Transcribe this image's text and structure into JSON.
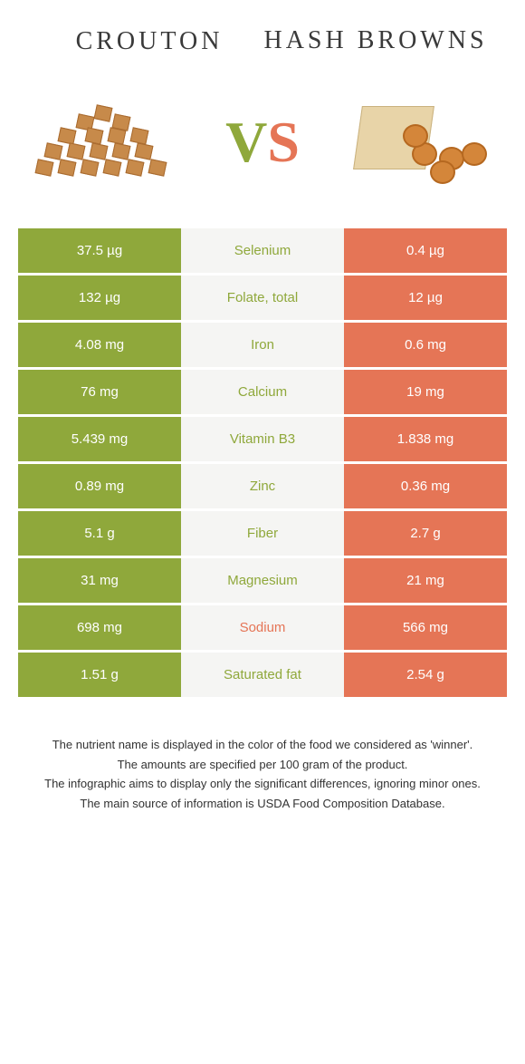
{
  "foods": {
    "left": "Crouton",
    "right": "Hash browns"
  },
  "vs": {
    "v": "V",
    "s": "S"
  },
  "colors": {
    "green": "#8fa83b",
    "orange": "#e57556",
    "mid_bg": "#f5f5f3"
  },
  "rows": [
    {
      "left": "37.5 µg",
      "label": "Selenium",
      "right": "0.4 µg",
      "winner": "green"
    },
    {
      "left": "132 µg",
      "label": "Folate, total",
      "right": "12 µg",
      "winner": "green"
    },
    {
      "left": "4.08 mg",
      "label": "Iron",
      "right": "0.6 mg",
      "winner": "green"
    },
    {
      "left": "76 mg",
      "label": "Calcium",
      "right": "19 mg",
      "winner": "green"
    },
    {
      "left": "5.439 mg",
      "label": "Vitamin B3",
      "right": "1.838 mg",
      "winner": "green"
    },
    {
      "left": "0.89 mg",
      "label": "Zinc",
      "right": "0.36 mg",
      "winner": "green"
    },
    {
      "left": "5.1 g",
      "label": "Fiber",
      "right": "2.7 g",
      "winner": "green"
    },
    {
      "left": "31 mg",
      "label": "Magnesium",
      "right": "21 mg",
      "winner": "green"
    },
    {
      "left": "698 mg",
      "label": "Sodium",
      "right": "566 mg",
      "winner": "orange"
    },
    {
      "left": "1.51 g",
      "label": "Saturated fat",
      "right": "2.54 g",
      "winner": "green"
    }
  ],
  "footnotes": [
    "The nutrient name is displayed in the color of the food we considered as 'winner'.",
    "The amounts are specified per 100 gram of the product.",
    "The infographic aims to display only the significant differences, ignoring minor ones.",
    "The main source of information is USDA Food Composition Database."
  ]
}
